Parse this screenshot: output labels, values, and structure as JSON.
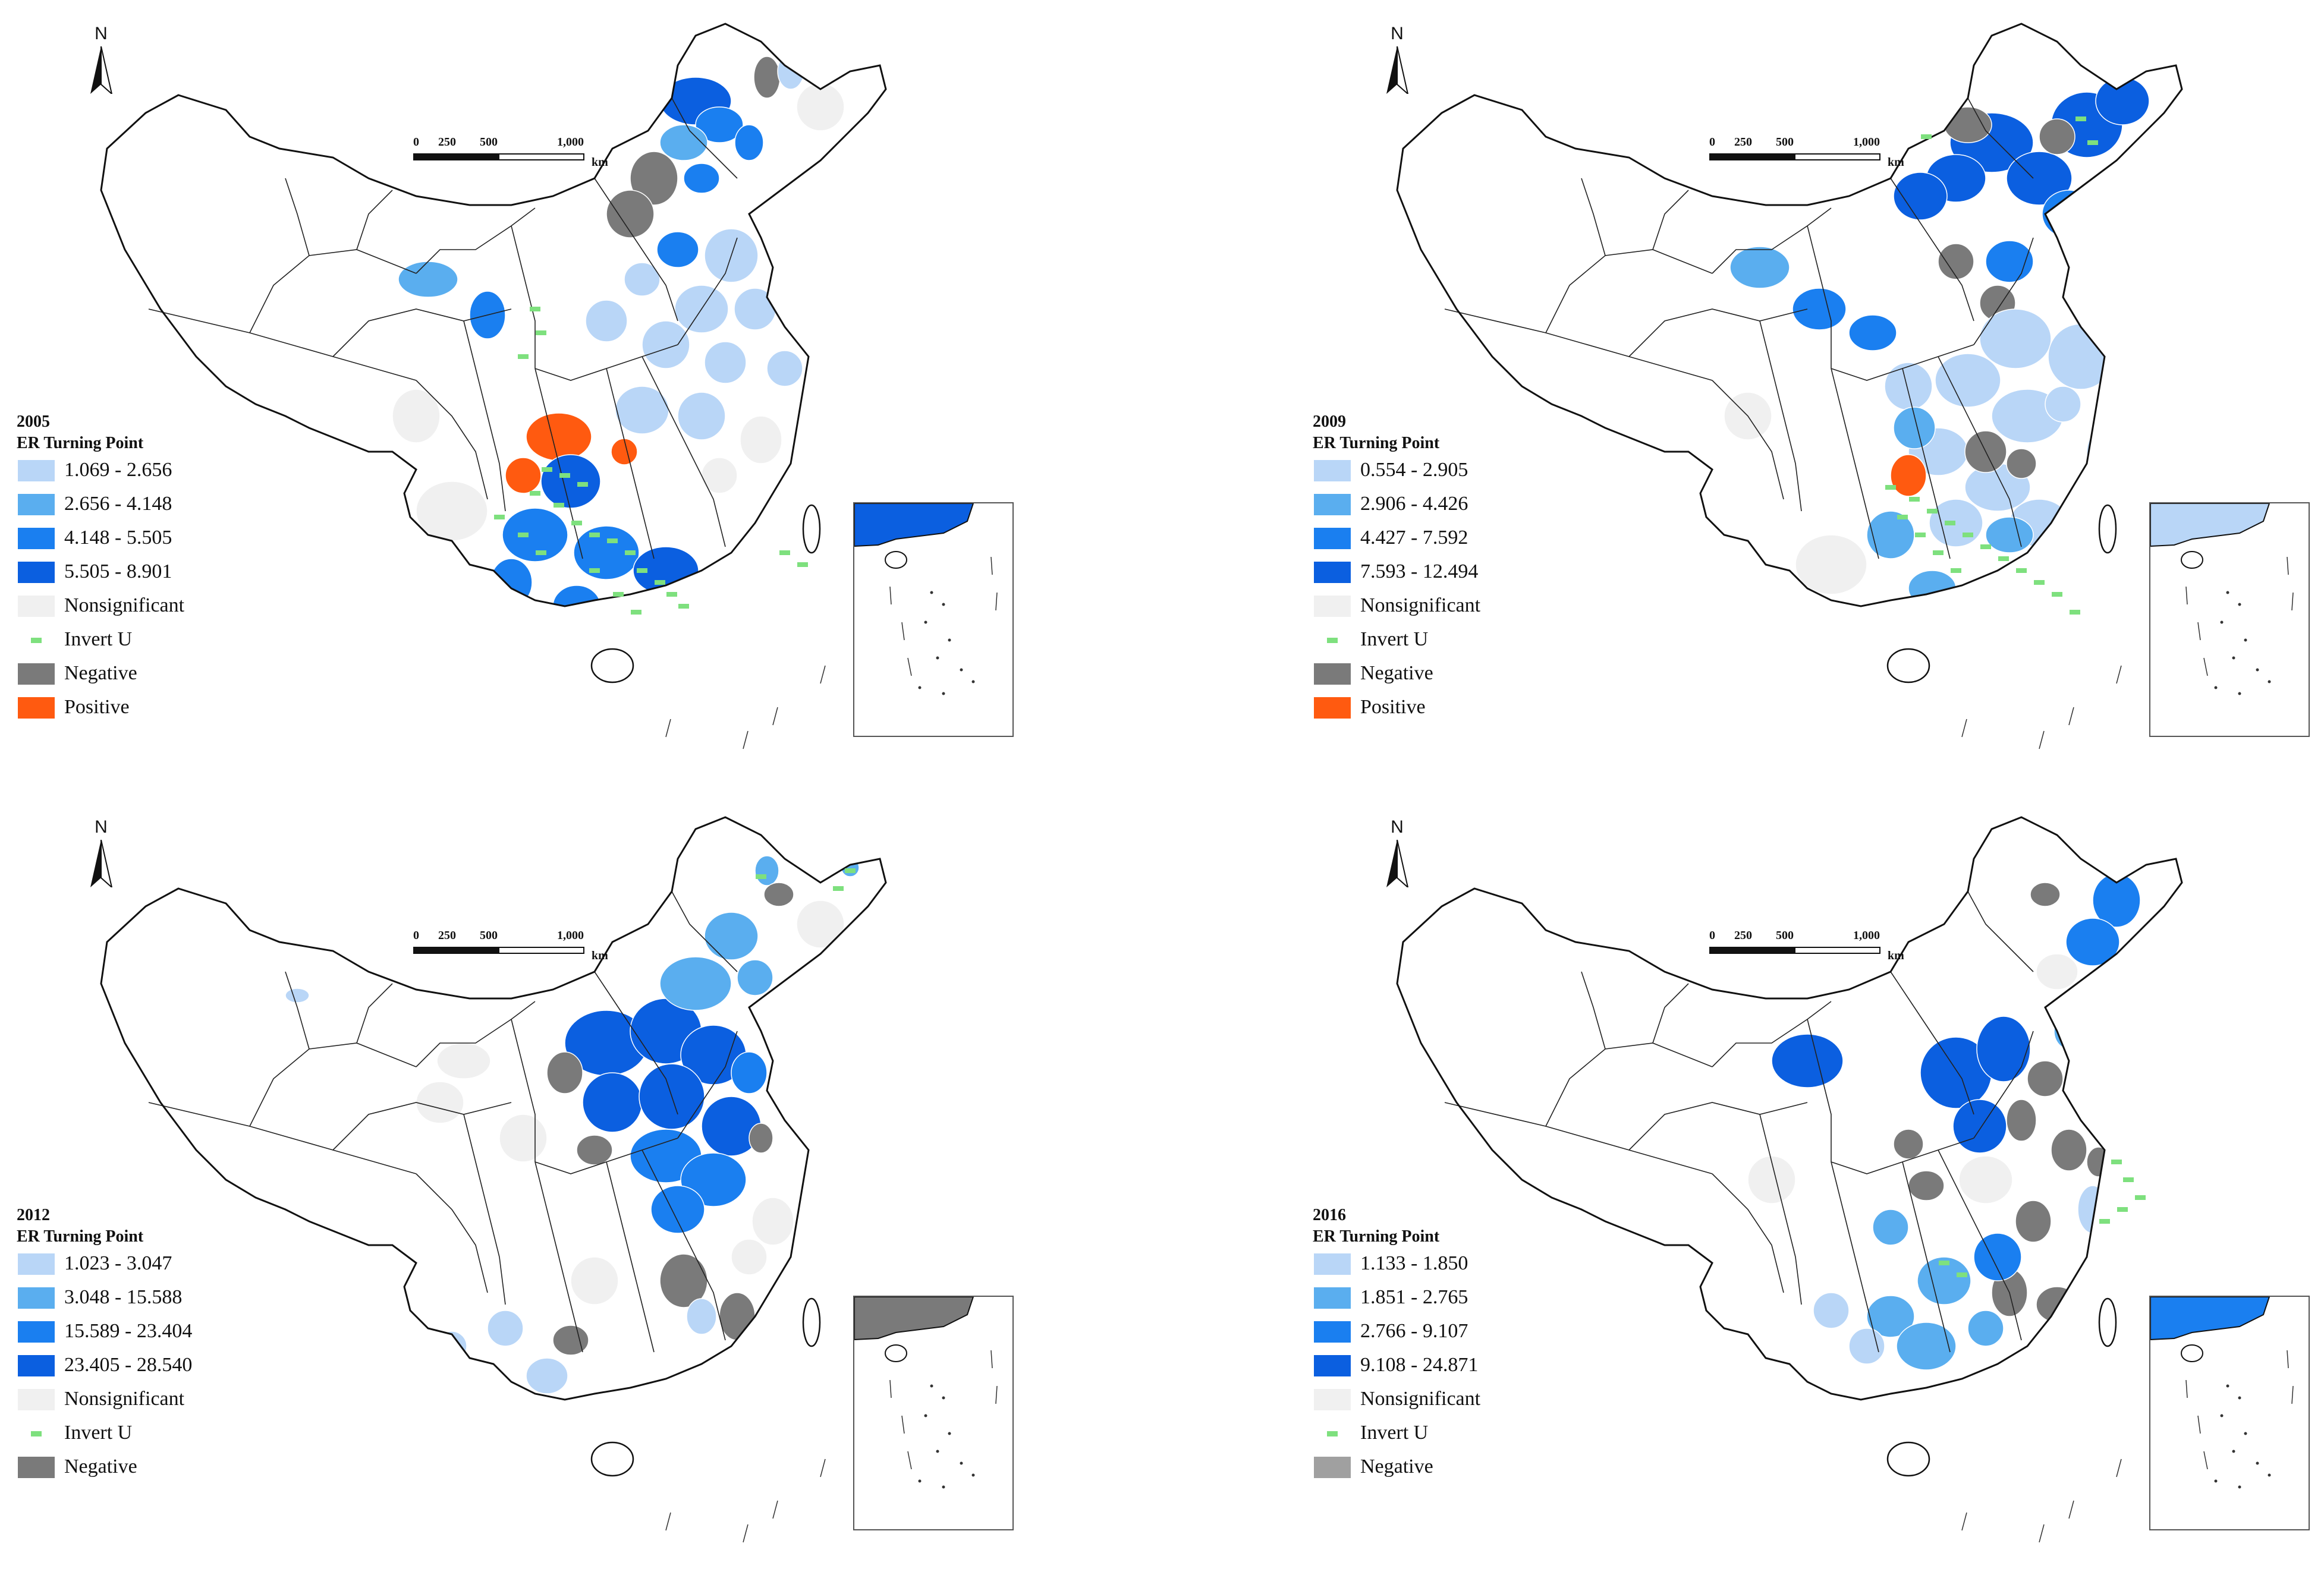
{
  "map_title": "ER Turning Point",
  "scale_bar": {
    "ticks": [
      "0",
      "250",
      "500",
      "1,000"
    ],
    "unit": "km"
  },
  "north_arrow": "N",
  "colors": {
    "class1": "#b9d6f7",
    "class2": "#5aaeef",
    "class3": "#1a7ff0",
    "class4": "#0b5fe0",
    "nonsignificant": "#f0f0f0",
    "invert_u": "#7ee07e",
    "negative": "#7a7a7a",
    "positive": "#ff5a10"
  },
  "panels": [
    {
      "year": "2005",
      "title": "ER Turning Point",
      "legend": [
        {
          "label": "1.069 - 2.656",
          "color": "#b9d6f7"
        },
        {
          "label": "2.656 - 4.148",
          "color": "#5aaeef"
        },
        {
          "label": "4.148 - 5.505",
          "color": "#1a7ff0"
        },
        {
          "label": "5.505 - 8.901",
          "color": "#0b5fe0"
        },
        {
          "label": "Nonsignificant",
          "color": "#f0f0f0"
        },
        {
          "label": "Invert U",
          "color": "#7ee07e"
        },
        {
          "label": "Negative",
          "color": "#7a7a7a"
        },
        {
          "label": "Positive",
          "color": "#ff5a10"
        }
      ]
    },
    {
      "year": "2009",
      "title": "ER Turning Point",
      "legend": [
        {
          "label": "0.554 - 2.905",
          "color": "#b9d6f7"
        },
        {
          "label": "2.906 - 4.426",
          "color": "#5aaeef"
        },
        {
          "label": "4.427 - 7.592",
          "color": "#1a7ff0"
        },
        {
          "label": "7.593 - 12.494",
          "color": "#0b5fe0"
        },
        {
          "label": "Nonsignificant",
          "color": "#f0f0f0"
        },
        {
          "label": "Invert U",
          "color": "#7ee07e"
        },
        {
          "label": "Negative",
          "color": "#7a7a7a"
        },
        {
          "label": "Positive",
          "color": "#ff5a10"
        }
      ]
    },
    {
      "year": "2012",
      "title": "ER Turning Point",
      "legend": [
        {
          "label": "1.023 - 3.047",
          "color": "#b9d6f7"
        },
        {
          "label": "3.048 - 15.588",
          "color": "#5aaeef"
        },
        {
          "label": "15.589 - 23.404",
          "color": "#1a7ff0"
        },
        {
          "label": "23.405 - 28.540",
          "color": "#0b5fe0"
        },
        {
          "label": "Nonsignificant",
          "color": "#f0f0f0"
        },
        {
          "label": "Invert U",
          "color": "#7ee07e"
        },
        {
          "label": "Negative",
          "color": "#7a7a7a"
        }
      ]
    },
    {
      "year": "2016",
      "title": "ER Turning Point",
      "legend": [
        {
          "label": "1.133 - 1.850",
          "color": "#b9d6f7"
        },
        {
          "label": "1.851 - 2.765",
          "color": "#5aaeef"
        },
        {
          "label": "2.766 - 9.107",
          "color": "#1a7ff0"
        },
        {
          "label": "9.108 - 24.871",
          "color": "#0b5fe0"
        },
        {
          "label": "Nonsignificant",
          "color": "#f0f0f0"
        },
        {
          "label": "Invert U",
          "color": "#7ee07e"
        },
        {
          "label": "Negative",
          "color": "#a0a0a0"
        }
      ]
    }
  ]
}
